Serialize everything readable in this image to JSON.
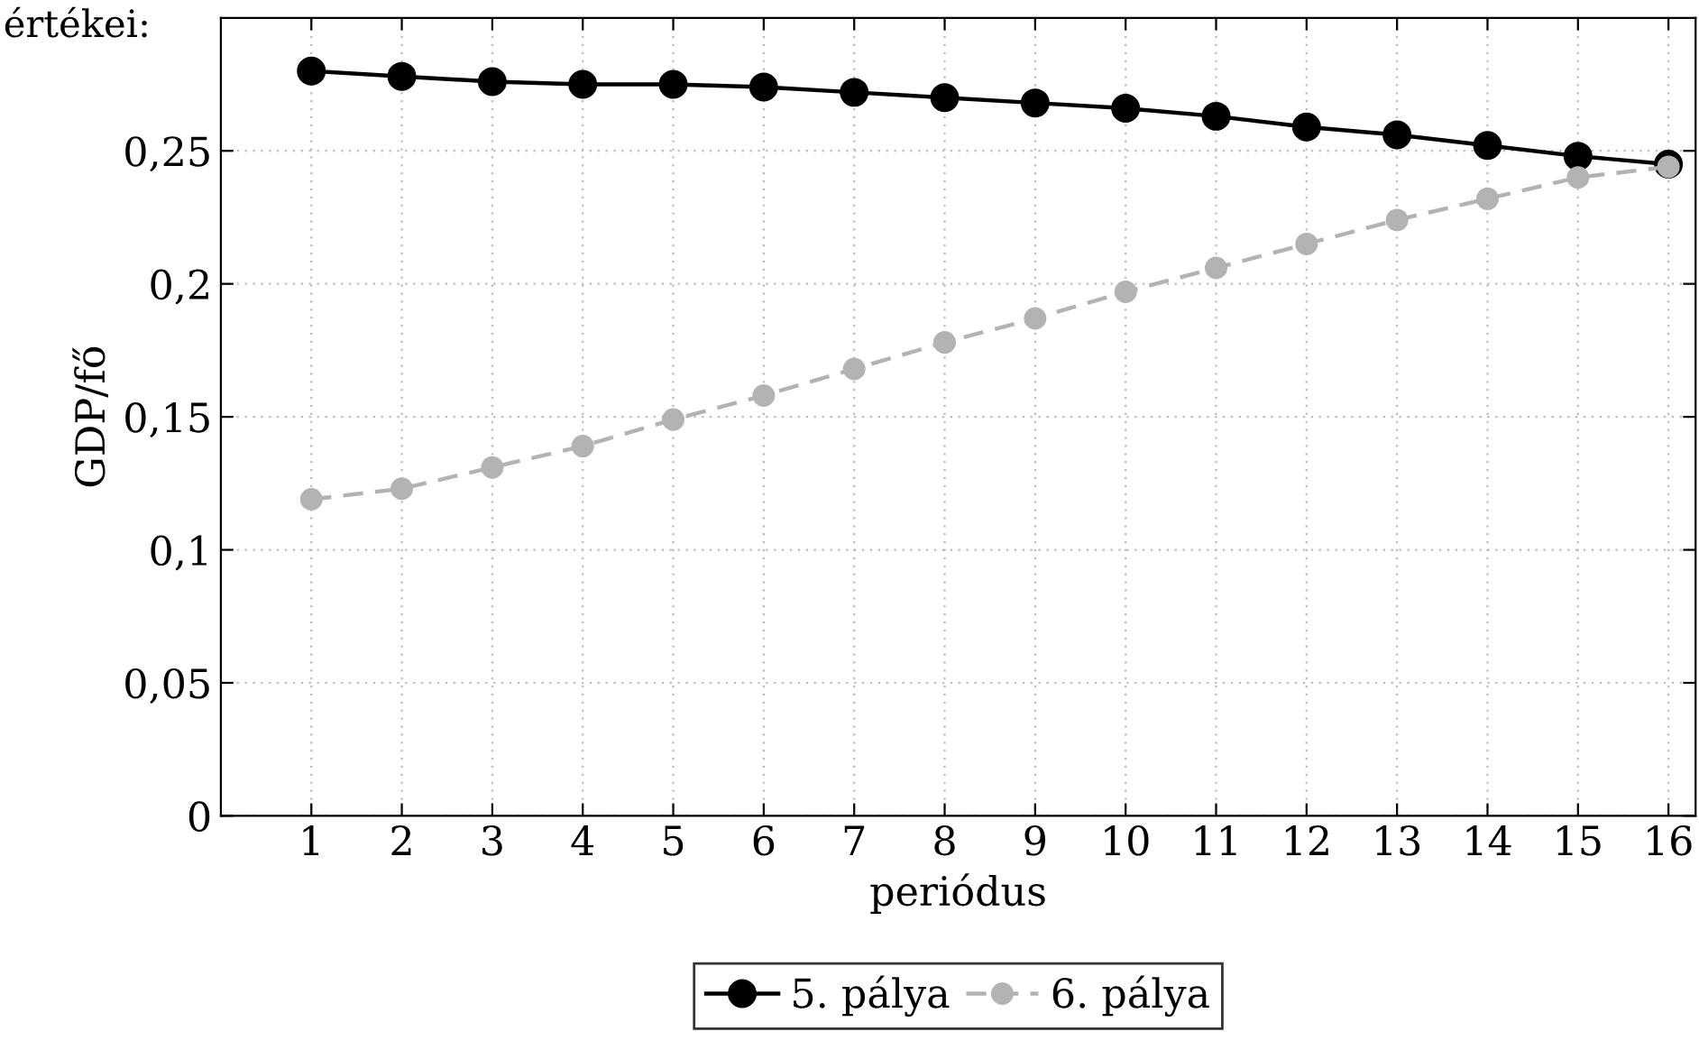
{
  "chart_data": {
    "type": "line",
    "annotations": [
      "értékei:"
    ],
    "xlabel": "periódus",
    "ylabel": "GDP/fő",
    "x": [
      1,
      2,
      3,
      4,
      5,
      6,
      7,
      8,
      9,
      10,
      11,
      12,
      13,
      14,
      15,
      16
    ],
    "series": [
      {
        "name": "5. pálya",
        "color": "#000000",
        "line_style": "solid",
        "values": [
          0.28,
          0.278,
          0.276,
          0.275,
          0.275,
          0.274,
          0.272,
          0.27,
          0.268,
          0.266,
          0.263,
          0.259,
          0.256,
          0.252,
          0.248,
          0.245
        ]
      },
      {
        "name": "6. pálya",
        "color": "#b3b3b3",
        "line_style": "dashed",
        "values": [
          0.119,
          0.123,
          0.131,
          0.139,
          0.149,
          0.158,
          0.168,
          0.178,
          0.187,
          0.197,
          0.206,
          0.215,
          0.224,
          0.232,
          0.24,
          0.244
        ]
      }
    ],
    "marker": "circle",
    "xlim": [
      0,
      16.3
    ],
    "xticks": [
      1,
      2,
      3,
      4,
      5,
      6,
      7,
      8,
      9,
      10,
      11,
      12,
      13,
      14,
      15,
      16
    ],
    "ylim": [
      0,
      0.3
    ],
    "yticks": [
      0,
      {
        "value": 0.05,
        "label": "0,05"
      },
      {
        "value": 0.1,
        "label": "0,1"
      },
      {
        "value": 0.15,
        "label": "0,15"
      },
      {
        "value": 0.2,
        "label": "0,2"
      },
      {
        "value": 0.25,
        "label": "0,25"
      }
    ],
    "grid": true,
    "legend": "bottom"
  }
}
